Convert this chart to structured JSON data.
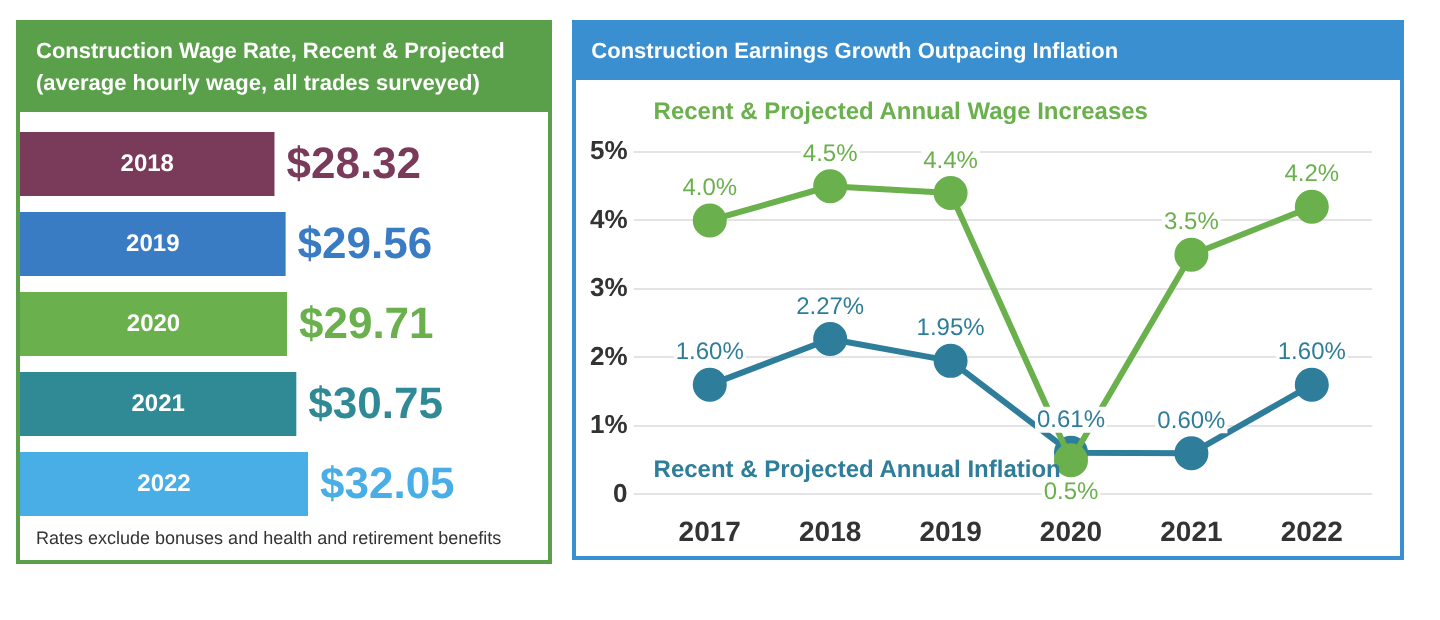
{
  "chart_data": [
    {
      "type": "bar",
      "orientation": "horizontal",
      "title": "Construction Wage Rate, Recent & Projected",
      "subtitle": "(average hourly wage, all trades surveyed)",
      "categories": [
        "2018",
        "2019",
        "2020",
        "2021",
        "2022"
      ],
      "values": [
        28.32,
        29.56,
        29.71,
        30.75,
        32.05
      ],
      "colors": [
        "#7a3a5a",
        "#3a7cc4",
        "#6ab04c",
        "#2f8a96",
        "#4aaee6"
      ],
      "value_labels": [
        "$28.32",
        "$29.56",
        "$29.71",
        "$30.75",
        "$32.05"
      ],
      "annotations": [
        "Rates exclude bonuses and health and retirement benefits"
      ]
    },
    {
      "type": "line",
      "title": "Construction Earnings Growth Outpacing Inflation",
      "categories": [
        "2017",
        "2018",
        "2019",
        "2020",
        "2021",
        "2022"
      ],
      "series": [
        {
          "name": "Recent & Projected Annual Wage Increases",
          "color": "#6ab04c",
          "values": [
            4.0,
            4.5,
            4.4,
            0.5,
            3.5,
            4.2
          ],
          "value_labels": [
            "4.0%",
            "4.5%",
            "4.4%",
            "0.5%",
            "3.5%",
            "4.2%"
          ]
        },
        {
          "name": "Recent & Projected Annual Inflation",
          "color": "#2e7d9a",
          "values": [
            1.6,
            2.27,
            1.95,
            0.61,
            0.6,
            1.6
          ],
          "value_labels": [
            "1.60%",
            "2.27%",
            "1.95%",
            "0.61%",
            "0.60%",
            "1.60%"
          ]
        }
      ],
      "ylim": [
        0,
        5
      ],
      "yticks": [
        0,
        {
          "value": 1,
          "label": "1%"
        },
        {
          "value": 2,
          "label": "2%"
        },
        {
          "value": 3,
          "label": "3%"
        },
        {
          "value": 4,
          "label": "4%"
        },
        {
          "value": 5,
          "label": "5%"
        }
      ],
      "grid": "y",
      "legend": false,
      "marker": "circle",
      "line_style": "solid"
    }
  ]
}
